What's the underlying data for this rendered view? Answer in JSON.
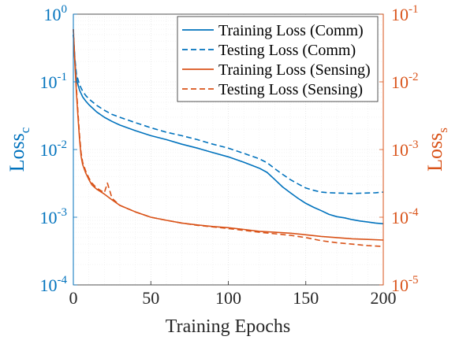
{
  "chart_data": {
    "type": "line",
    "title": "",
    "xlabel": "Training Epochs",
    "xlim": [
      0,
      200
    ],
    "x_ticks": [
      0,
      50,
      100,
      150,
      200
    ],
    "grid": true,
    "legend_position": "top-right",
    "left_axis": {
      "label_main": "Loss",
      "label_sub": "c",
      "scale": "log",
      "ylim": [
        0.0001,
        1
      ],
      "ticks": [
        {
          "base": "10",
          "exp": "0",
          "value": 1
        },
        {
          "base": "10",
          "exp": "-1",
          "value": 0.1
        },
        {
          "base": "10",
          "exp": "-2",
          "value": 0.01
        },
        {
          "base": "10",
          "exp": "-3",
          "value": 0.001
        },
        {
          "base": "10",
          "exp": "-4",
          "value": 0.0001
        }
      ],
      "color": "#0072BD"
    },
    "right_axis": {
      "label_main": "Loss",
      "label_sub": "s",
      "scale": "log",
      "ylim": [
        1e-05,
        0.1
      ],
      "ticks": [
        {
          "base": "10",
          "exp": "-1",
          "value": 0.1
        },
        {
          "base": "10",
          "exp": "-2",
          "value": 0.01
        },
        {
          "base": "10",
          "exp": "-3",
          "value": 0.001
        },
        {
          "base": "10",
          "exp": "-4",
          "value": 0.0001
        },
        {
          "base": "10",
          "exp": "-5",
          "value": 1e-05
        }
      ],
      "color": "#D95319"
    },
    "series": [
      {
        "name": "Training Loss (Comm)",
        "axis": "left",
        "style": "solid",
        "color": "#0072BD",
        "x": [
          0,
          1,
          2,
          4,
          6,
          8,
          10,
          15,
          20,
          25,
          30,
          40,
          50,
          60,
          70,
          80,
          90,
          100,
          110,
          120,
          125,
          130,
          135,
          140,
          145,
          150,
          155,
          160,
          165,
          170,
          175,
          180,
          185,
          190,
          195,
          200
        ],
        "y": [
          0.5,
          0.2,
          0.11,
          0.075,
          0.06,
          0.052,
          0.046,
          0.036,
          0.03,
          0.026,
          0.023,
          0.019,
          0.016,
          0.014,
          0.012,
          0.0105,
          0.009,
          0.0078,
          0.0065,
          0.0053,
          0.0046,
          0.0036,
          0.0028,
          0.0023,
          0.0019,
          0.0016,
          0.0014,
          0.00125,
          0.0011,
          0.00102,
          0.00098,
          0.00092,
          0.00088,
          0.00085,
          0.00082,
          0.0008
        ]
      },
      {
        "name": "Testing Loss (Comm)",
        "axis": "left",
        "style": "dashed",
        "color": "#0072BD",
        "x": [
          0,
          1,
          2,
          4,
          6,
          8,
          10,
          15,
          20,
          25,
          30,
          40,
          50,
          60,
          70,
          80,
          90,
          100,
          110,
          120,
          125,
          130,
          135,
          140,
          145,
          150,
          155,
          160,
          165,
          170,
          175,
          180,
          185,
          190,
          195,
          200
        ],
        "y": [
          0.5,
          0.22,
          0.13,
          0.09,
          0.073,
          0.063,
          0.056,
          0.045,
          0.038,
          0.033,
          0.03,
          0.025,
          0.021,
          0.018,
          0.016,
          0.014,
          0.012,
          0.0105,
          0.0088,
          0.0073,
          0.0064,
          0.0052,
          0.0043,
          0.0036,
          0.0031,
          0.0027,
          0.0025,
          0.00235,
          0.0023,
          0.00228,
          0.00226,
          0.00224,
          0.00226,
          0.00228,
          0.0023,
          0.00235
        ]
      },
      {
        "name": "Training Loss (Sensing)",
        "axis": "right",
        "style": "solid",
        "color": "#D95319",
        "x": [
          0,
          1,
          2,
          3,
          4,
          5,
          6,
          8,
          10,
          12,
          15,
          20,
          25,
          30,
          40,
          50,
          60,
          70,
          80,
          90,
          100,
          110,
          120,
          130,
          140,
          150,
          160,
          170,
          180,
          190,
          200
        ],
        "y": [
          0.06,
          0.018,
          0.007,
          0.003,
          0.0014,
          0.0008,
          0.0006,
          0.00045,
          0.00036,
          0.0003,
          0.00026,
          0.00022,
          0.00018,
          0.00015,
          0.00012,
          0.0001,
          9e-05,
          8.2e-05,
          7.7e-05,
          7.3e-05,
          7e-05,
          6.6e-05,
          6.2e-05,
          6e-05,
          5.8e-05,
          5.5e-05,
          5.2e-05,
          5e-05,
          4.8e-05,
          4.7e-05,
          4.6e-05
        ]
      },
      {
        "name": "Testing Loss (Sensing)",
        "axis": "right",
        "style": "dashed",
        "color": "#D95319",
        "x": [
          0,
          1,
          2,
          3,
          4,
          5,
          6,
          8,
          10,
          12,
          15,
          20,
          22,
          25,
          30,
          40,
          50,
          60,
          70,
          80,
          90,
          100,
          110,
          120,
          130,
          140,
          150,
          160,
          170,
          180,
          190,
          200
        ],
        "y": [
          0.06,
          0.02,
          0.008,
          0.0035,
          0.0016,
          0.0009,
          0.00065,
          0.00048,
          0.00038,
          0.00032,
          0.00027,
          0.00023,
          0.00032,
          0.00019,
          0.00015,
          0.00012,
          0.0001,
          9e-05,
          8.2e-05,
          7.6e-05,
          7.2e-05,
          6.8e-05,
          6.4e-05,
          6e-05,
          5.7e-05,
          5.4e-05,
          5e-05,
          4.5e-05,
          4.2e-05,
          4e-05,
          3.8e-05,
          3.7e-05
        ]
      }
    ]
  }
}
